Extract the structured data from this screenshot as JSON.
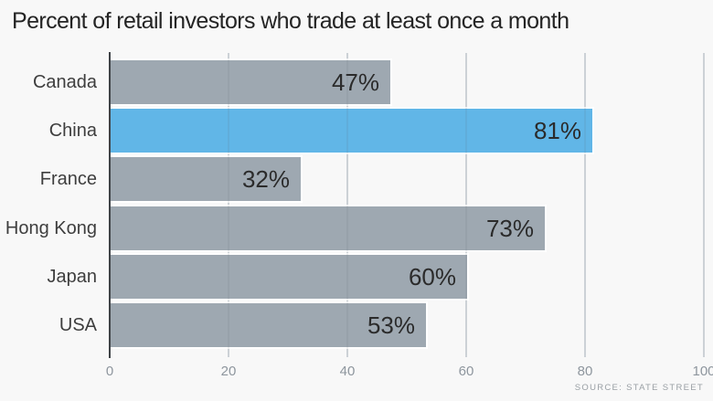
{
  "title": "Percent of retail investors who trade at least once a month",
  "source": "SOURCE: STATE STREET",
  "chart_data": {
    "type": "bar",
    "orientation": "horizontal",
    "title": "Percent of retail investors who trade at least once a month",
    "categories": [
      "Canada",
      "China",
      "France",
      "Hong Kong",
      "Japan",
      "USA"
    ],
    "values": [
      47,
      81,
      32,
      73,
      60,
      53
    ],
    "value_labels": [
      "47%",
      "81%",
      "32%",
      "73%",
      "60%",
      "53%"
    ],
    "highlighted_category": "China",
    "xlim": [
      0,
      100
    ],
    "x_ticks": [
      0,
      20,
      40,
      60,
      80,
      100
    ],
    "grid": true,
    "legend": "none",
    "source": "SOURCE: STATE STREET",
    "colors": {
      "bar_default": "#9aa4ae",
      "bar_highlight": "#5bb3e6",
      "background": "#f8f8f8",
      "gridline": "#d9dde1",
      "axis": "#3f4347",
      "category_label": "#3e3e3e",
      "value_label": "#2b2b2b",
      "tick_label": "#8e969e",
      "title": "#242424",
      "source": "#9aa0a5"
    }
  }
}
